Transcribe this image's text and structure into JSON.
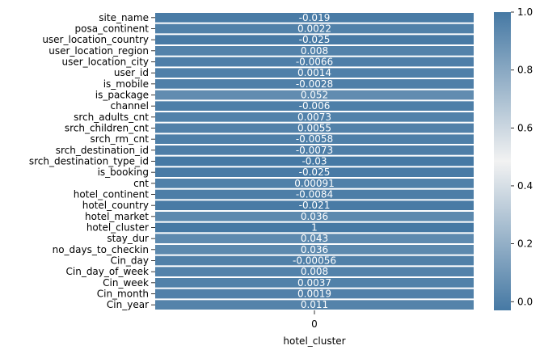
{
  "chart_data": {
    "type": "heatmap",
    "xlabel": "hotel_cluster",
    "x_tick_labels": [
      "0"
    ],
    "categories": [
      "site_name",
      "posa_continent",
      "user_location_country",
      "user_location_region",
      "user_location_city",
      "user_id",
      "is_mobile",
      "is_package",
      "channel",
      "srch_adults_cnt",
      "srch_children_cnt",
      "srch_rm_cnt",
      "srch_destination_id",
      "srch_destination_type_id",
      "is_booking",
      "cnt",
      "hotel_continent",
      "hotel_country",
      "hotel_market",
      "hotel_cluster",
      "stay_dur",
      "no_days_to_checkin",
      "Cin_day",
      "Cin_day_of_week",
      "Cin_week",
      "Cin_month",
      "Cin_year"
    ],
    "values": [
      -0.019,
      0.0022,
      -0.025,
      0.008,
      -0.0066,
      0.0014,
      -0.0028,
      0.052,
      -0.006,
      0.0073,
      0.0055,
      -0.0058,
      -0.0073,
      -0.03,
      -0.025,
      0.00091,
      -0.0084,
      -0.021,
      0.036,
      1,
      0.043,
      0.036,
      -0.00056,
      0.008,
      0.0037,
      0.0019,
      0.011
    ],
    "value_labels": [
      "-0.019",
      "0.0022",
      "-0.025",
      "0.008",
      "-0.0066",
      "0.0014",
      "-0.0028",
      "0.052",
      "-0.006",
      "0.0073",
      "0.0055",
      "-0.0058",
      "-0.0073",
      "-0.03",
      "-0.025",
      "0.00091",
      "-0.0084",
      "-0.021",
      "0.036",
      "1",
      "0.043",
      "0.036",
      "-0.00056",
      "0.008",
      "0.0037",
      "0.0019",
      "0.011"
    ],
    "colorbar": {
      "range": [
        -0.03,
        1.0
      ],
      "ticks": [
        "0.0",
        "0.2",
        "0.4",
        "0.6",
        "0.8",
        "1.0"
      ],
      "tick_values": [
        0.0,
        0.2,
        0.4,
        0.6,
        0.8,
        1.0
      ],
      "colors": [
        "#4679a4",
        "#f2f2f2",
        "#4679a4"
      ]
    },
    "grid": false,
    "legend": "colorbar-right"
  }
}
